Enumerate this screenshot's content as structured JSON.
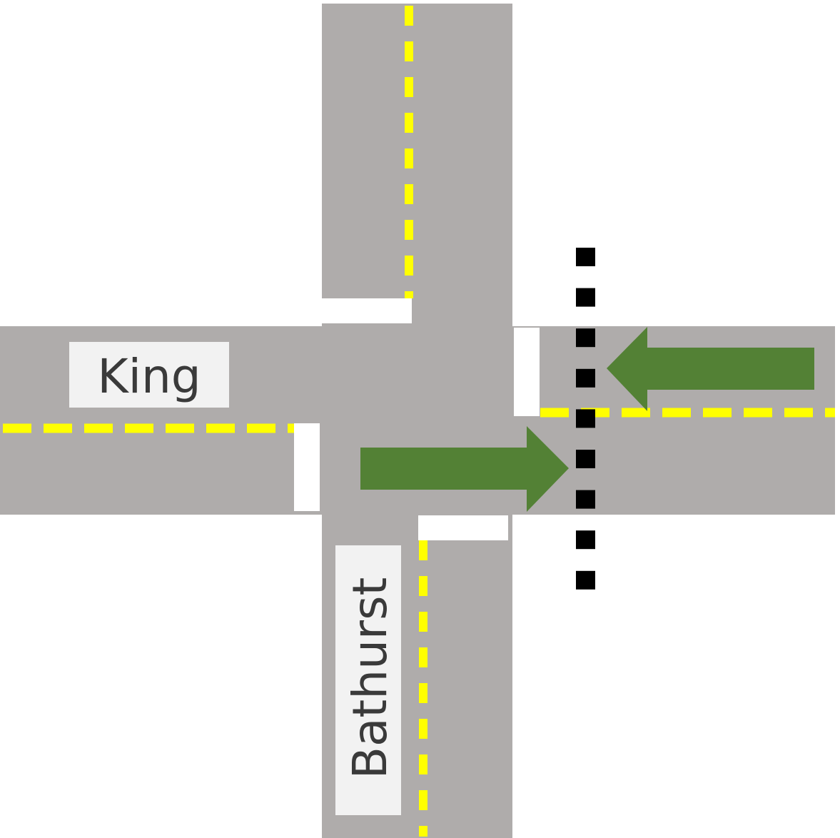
{
  "colors": {
    "background": "#ffffff",
    "road": "#afacab",
    "lane_marking": "#ffff00",
    "stop_line": "#ffffff",
    "arrow": "#538135",
    "boundary": "#000000",
    "label_bg": "#f2f2f2",
    "label_text": "#3a3a3a"
  },
  "streets": {
    "horizontal": {
      "name": "King"
    },
    "vertical": {
      "name": "Bathurst"
    }
  },
  "arrows": [
    {
      "direction": "west",
      "color": "arrow"
    },
    {
      "direction": "east",
      "color": "arrow"
    }
  ],
  "boundary_line": {
    "style": "dotted",
    "color": "boundary"
  }
}
